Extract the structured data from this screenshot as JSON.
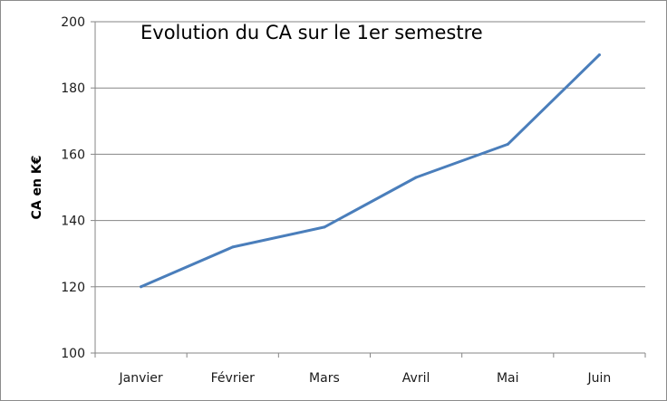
{
  "chart_data": {
    "type": "line",
    "title": "Evolution du CA sur le 1er semestre",
    "xlabel": "",
    "ylabel": "CA en K€",
    "categories": [
      "Janvier",
      "Février",
      "Mars",
      "Avril",
      "Mai",
      "Juin"
    ],
    "series": [
      {
        "values": [
          120,
          132,
          138,
          153,
          163,
          190
        ],
        "color": "#4a7ebb"
      }
    ],
    "ylim": [
      100,
      200
    ],
    "yticks": [
      100,
      120,
      140,
      160,
      180,
      200
    ],
    "grid": true,
    "legend": "none"
  }
}
